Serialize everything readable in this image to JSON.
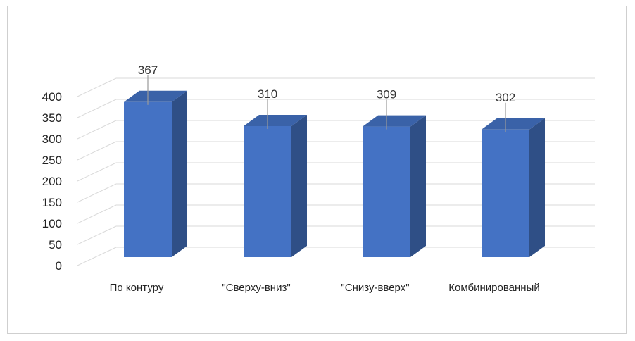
{
  "chart_data": {
    "type": "bar",
    "title": "",
    "xlabel": "",
    "ylabel": "",
    "categories": [
      "По контуру",
      "\"Сверху-вниз\"",
      "\"Снизу-вверх\"",
      "Комбинированный"
    ],
    "values": [
      367,
      310,
      309,
      302
    ],
    "data_labels": [
      "367",
      "310",
      "309",
      "302"
    ],
    "ylim": [
      0,
      400
    ],
    "yticks": [
      "0",
      "50",
      "100",
      "150",
      "200",
      "250",
      "300",
      "350",
      "400"
    ],
    "grid": true,
    "legend": "none",
    "style": "3d-column",
    "colors": {
      "front": "#4472c4",
      "side": "#2f4f86",
      "top": "#3a62a8",
      "grid": "#d9d9d9"
    }
  }
}
